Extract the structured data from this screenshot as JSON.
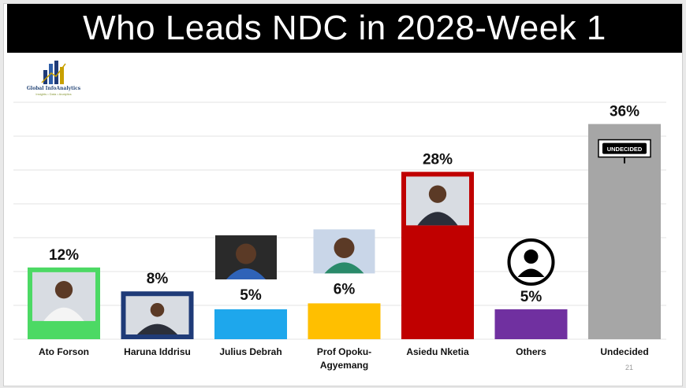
{
  "title": "Who Leads NDC in 2028-Week 1",
  "logo": {
    "name": "Global InfoAnalytics",
    "tagline": "Insights • Data • Analytics"
  },
  "page_number": "21",
  "undecided_sign": "UNDECIDED",
  "chart_data": {
    "type": "bar",
    "title": "Who Leads NDC in 2028-Week 1",
    "categories": [
      "Ato Forson",
      "Haruna Iddrisu",
      "Julius Debrah",
      "Prof Opoku-Agyemang",
      "Asiedu Nketia",
      "Others",
      "Undecided"
    ],
    "category_lines": [
      [
        "Ato Forson"
      ],
      [
        "Haruna Iddrisu"
      ],
      [
        "Julius Debrah"
      ],
      [
        "Prof Opoku-",
        "Agyemang"
      ],
      [
        "Asiedu Nketia"
      ],
      [
        "Others"
      ],
      [
        "Undecided"
      ]
    ],
    "values": [
      12,
      8,
      5,
      6,
      28,
      5,
      36
    ],
    "labels": [
      "12%",
      "8%",
      "5%",
      "6%",
      "28%",
      "5%",
      "36%"
    ],
    "colors": [
      "#4cd964",
      "#1f3b78",
      "#1ea7ec",
      "#ffbf00",
      "#c00000",
      "#7030a0",
      "#a6a6a6"
    ],
    "photo_style": [
      "inset",
      "inset-border",
      "above",
      "above",
      "inset",
      "icon",
      "sign"
    ],
    "ylim": [
      0,
      40
    ],
    "grid": true,
    "legend": "none"
  }
}
